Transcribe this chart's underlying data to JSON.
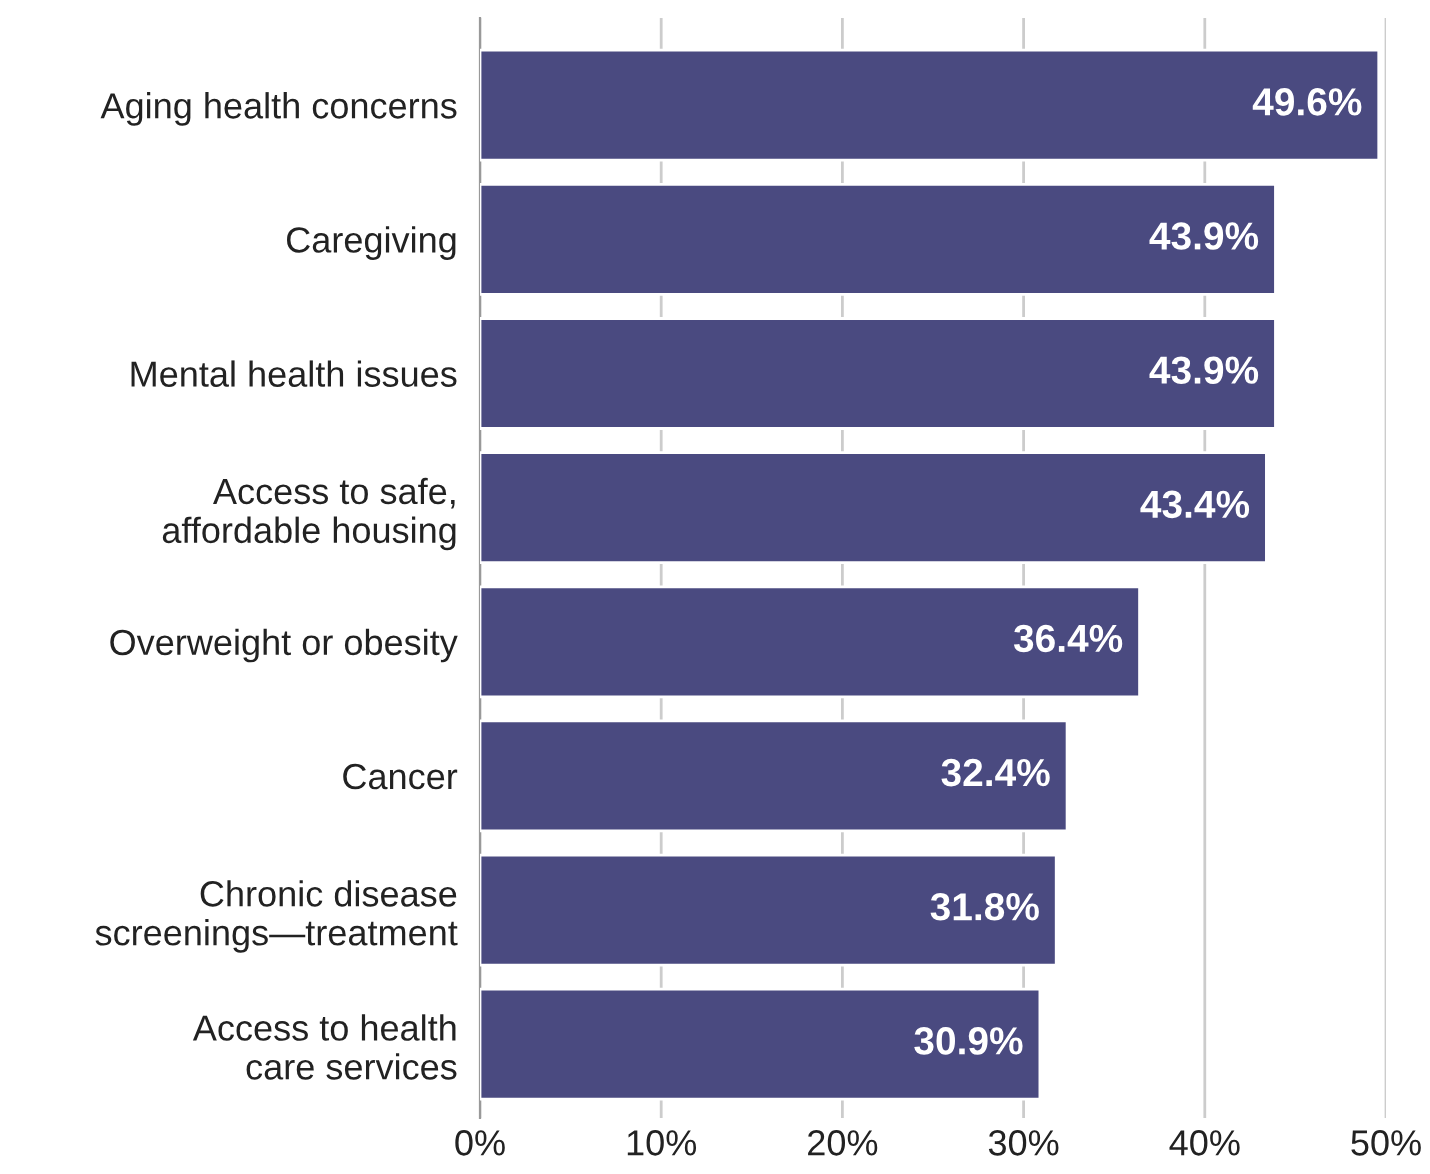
{
  "chart_data": {
    "type": "bar",
    "orientation": "horizontal",
    "categories": [
      "Aging health concerns",
      "Caregiving",
      "Mental health issues",
      "Access to safe,\naffordable housing",
      "Overweight or obesity",
      "Cancer",
      "Chronic disease\nscreenings—treatment",
      "Access to health\ncare services"
    ],
    "values": [
      49.6,
      43.9,
      43.9,
      43.4,
      36.4,
      32.4,
      31.8,
      30.9
    ],
    "value_labels": [
      "49.6%",
      "43.9%",
      "43.9%",
      "43.4%",
      "36.4%",
      "32.4%",
      "31.8%",
      "30.9%"
    ],
    "color": "#4a4a80",
    "xlim": [
      0,
      50
    ],
    "xticks": [
      {
        "value": 0,
        "label": "0%"
      },
      {
        "value": 10,
        "label": "10%"
      },
      {
        "value": 20,
        "label": "20%"
      },
      {
        "value": 30,
        "label": "30%"
      },
      {
        "value": 40,
        "label": "40%"
      },
      {
        "value": 50,
        "label": "50%"
      }
    ],
    "grid": "x"
  }
}
